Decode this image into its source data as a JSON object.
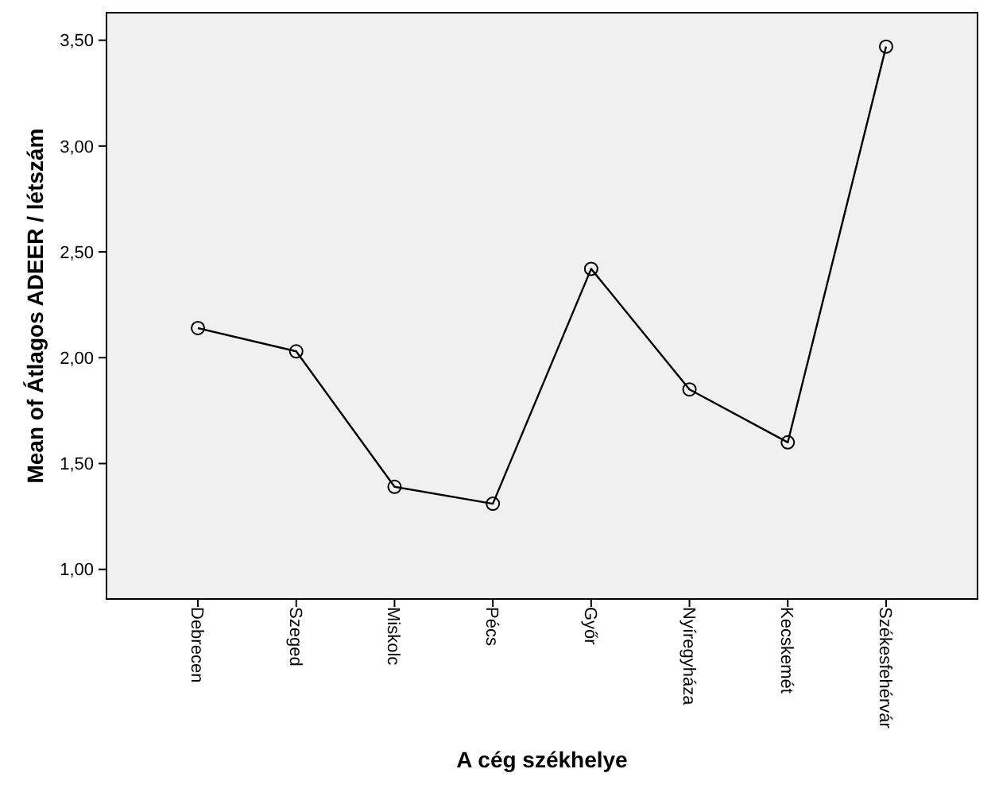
{
  "chart_data": {
    "type": "line",
    "xlabel": "A cég székhelye",
    "ylabel": "Mean of Átlagos ADEER / létszám",
    "categories": [
      "Debrecen",
      "Szeged",
      "Miskolc",
      "Pécs",
      "Győr",
      "Nyíregyháza",
      "Kecskemét",
      "Székesfehérvár"
    ],
    "values": [
      2.14,
      2.03,
      1.39,
      1.31,
      2.42,
      1.85,
      1.6,
      3.47
    ],
    "color": "#000000",
    "marker": "circle",
    "line_style": "solid",
    "ylim": [
      0.86,
      3.63
    ],
    "yticks": [
      {
        "value": 1,
        "label": "1,00"
      },
      {
        "value": 1.5,
        "label": "1,50"
      },
      {
        "value": 2,
        "label": "2,00"
      },
      {
        "value": 2.5,
        "label": "2,50"
      },
      {
        "value": 3,
        "label": "3,00"
      },
      {
        "value": 3.5,
        "label": "3,50"
      }
    ]
  }
}
